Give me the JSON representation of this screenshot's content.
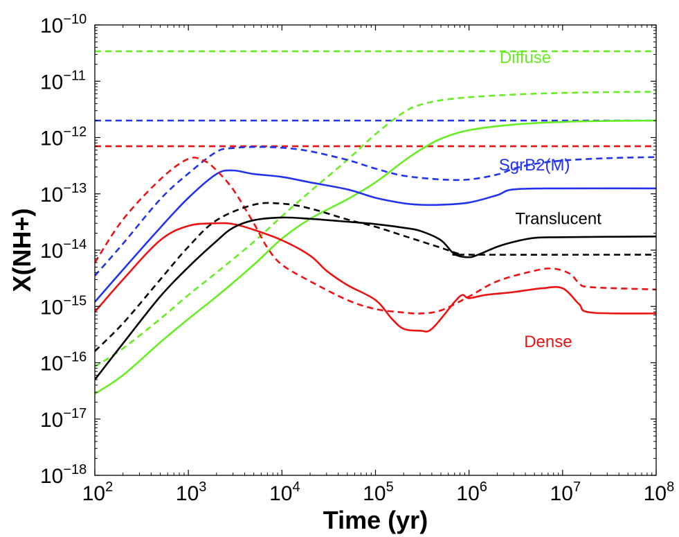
{
  "chart_data": {
    "type": "line",
    "xlabel": "Time (yr)",
    "ylabel": "X(NH+)",
    "x_scale": "log",
    "y_scale": "log",
    "xlim": [
      100,
      100000000
    ],
    "ylim": [
      1e-18,
      1e-10
    ],
    "x_ticks": [
      {
        "value": 100,
        "base": "10",
        "exp": "2"
      },
      {
        "value": 1000,
        "base": "10",
        "exp": "3"
      },
      {
        "value": 10000,
        "base": "10",
        "exp": "4"
      },
      {
        "value": 100000,
        "base": "10",
        "exp": "5"
      },
      {
        "value": 1000000,
        "base": "10",
        "exp": "6"
      },
      {
        "value": 10000000,
        "base": "10",
        "exp": "7"
      },
      {
        "value": 100000000,
        "base": "10",
        "exp": "8"
      }
    ],
    "y_ticks": [
      {
        "value": 1e-18,
        "base": "10",
        "exp": "−18"
      },
      {
        "value": 1e-17,
        "base": "10",
        "exp": "−17"
      },
      {
        "value": 1e-16,
        "base": "10",
        "exp": "−16"
      },
      {
        "value": 1e-15,
        "base": "10",
        "exp": "−15"
      },
      {
        "value": 1e-14,
        "base": "10",
        "exp": "−14"
      },
      {
        "value": 1e-13,
        "base": "10",
        "exp": "−13"
      },
      {
        "value": 1e-12,
        "base": "10",
        "exp": "−12"
      },
      {
        "value": 1e-11,
        "base": "10",
        "exp": "−11"
      },
      {
        "value": 1e-10,
        "base": "10",
        "exp": "−10"
      }
    ],
    "grid": false,
    "legend": "none",
    "annotations": [
      {
        "text": "Diffuse",
        "color": "#66ee22",
        "x": 4000000,
        "y": 2.1e-11
      },
      {
        "text": "SgrB2(M)",
        "color": "#2233ee",
        "x": 5000000,
        "y": 2.6e-13
      },
      {
        "text": "Translucent",
        "color": "#000000",
        "x": 9000000,
        "y": 2.9e-14
      },
      {
        "text": "Dense",
        "color": "#ee1111",
        "x": 7000000,
        "y": 1.9e-16
      }
    ],
    "series": [
      {
        "color": "#66ee22",
        "dash": true,
        "x": [
          100,
          100000000
        ],
        "y": [
          3.4e-11,
          3.4e-11
        ]
      },
      {
        "color": "#2233ee",
        "dash": true,
        "x": [
          100,
          100000000
        ],
        "y": [
          2e-12,
          2e-12
        ]
      },
      {
        "color": "#ee1111",
        "dash": true,
        "x": [
          100,
          100000000
        ],
        "y": [
          7e-13,
          7e-13
        ]
      },
      {
        "color": "#66ee22",
        "dash": true,
        "x": [
          100,
          200,
          500,
          1000,
          2000,
          5000,
          10000,
          20000,
          50000,
          100000,
          200000,
          300000,
          500000,
          1000000,
          3000000,
          10000000,
          30000000,
          100000000
        ],
        "y": [
          8.5e-17,
          1.8e-16,
          6e-16,
          1.6e-15,
          4e-15,
          1.4e-14,
          4e-14,
          1.1e-13,
          4e-13,
          1.15e-12,
          2.8e-12,
          3.8e-12,
          4.6e-12,
          5.2e-12,
          5.8e-12,
          6.2e-12,
          6.4e-12,
          6.5e-12
        ]
      },
      {
        "color": "#66ee22",
        "dash": false,
        "x": [
          100,
          200,
          500,
          1000,
          2000,
          5000,
          10000,
          20000,
          50000,
          100000,
          200000,
          300000,
          500000,
          1000000,
          3000000,
          10000000,
          30000000,
          100000000
        ],
        "y": [
          2.8e-17,
          6e-17,
          2.3e-16,
          6e-16,
          1.5e-15,
          5.5e-15,
          1.6e-14,
          3.6e-14,
          8e-14,
          1.6e-13,
          3.8e-13,
          6e-13,
          9.5e-13,
          1.35e-12,
          1.7e-12,
          1.9e-12,
          1.97e-12,
          2e-12
        ]
      },
      {
        "color": "#2233ee",
        "dash": true,
        "x": [
          100,
          200,
          500,
          1000,
          2000,
          3000,
          5000,
          10000,
          20000,
          50000,
          100000,
          200000,
          500000,
          1000000,
          2000000,
          3000000,
          5000000,
          10000000,
          30000000,
          100000000
        ],
        "y": [
          3.5e-15,
          1.3e-14,
          8e-14,
          2.3e-13,
          5.6e-13,
          6.5e-13,
          6.8e-13,
          6.6e-13,
          5.7e-13,
          4e-13,
          2.8e-13,
          2.1e-13,
          1.8e-13,
          1.8e-13,
          2.2e-13,
          2.8e-13,
          3.4e-13,
          3.9e-13,
          4.3e-13,
          4.5e-13
        ]
      },
      {
        "color": "#2233ee",
        "dash": false,
        "x": [
          100,
          200,
          500,
          1000,
          2000,
          3000,
          5000,
          10000,
          20000,
          50000,
          100000,
          200000,
          300000,
          500000,
          1000000,
          2000000,
          3000000,
          10000000,
          100000000
        ],
        "y": [
          1.2e-15,
          4.5e-15,
          2.5e-14,
          8.5e-14,
          2.25e-13,
          2.6e-13,
          2.25e-13,
          2e-13,
          1.6e-13,
          1.2e-13,
          8.5e-14,
          6.8e-14,
          6.4e-14,
          6.4e-14,
          7e-14,
          9.5e-14,
          1.2e-13,
          1.25e-13,
          1.25e-13
        ]
      },
      {
        "color": "#ee1111",
        "dash": true,
        "x": [
          100,
          200,
          500,
          1000,
          1500,
          2000,
          3000,
          5000,
          7000,
          10000,
          20000,
          50000,
          100000,
          200000,
          300000,
          500000,
          1000000,
          2000000,
          5000000,
          8000000,
          12000000,
          15000000,
          20000000,
          100000000
        ],
        "y": [
          6e-15,
          3.5e-14,
          1.8e-13,
          4.2e-13,
          3.8e-13,
          2.6e-13,
          1.2e-13,
          3e-14,
          1.1e-14,
          5.5e-15,
          2.8e-15,
          1.3e-15,
          9e-16,
          7.8e-16,
          7.5e-16,
          8.5e-16,
          1.5e-15,
          2.8e-15,
          4.3e-15,
          4.7e-15,
          3.8e-15,
          2.6e-15,
          2.2e-15,
          2e-15
        ]
      },
      {
        "color": "#ee1111",
        "dash": false,
        "x": [
          100,
          200,
          500,
          1000,
          2000,
          3000,
          5000,
          10000,
          20000,
          30000,
          50000,
          100000,
          150000,
          200000,
          300000,
          400000,
          700000,
          850000,
          1000000,
          1500000,
          3000000,
          6000000,
          10000000,
          15000000,
          20000000,
          100000000
        ],
        "y": [
          8e-16,
          3e-15,
          1.5e-14,
          2.7e-14,
          3e-14,
          2.9e-14,
          2.3e-14,
          1.5e-14,
          8e-15,
          4.3e-15,
          2.4e-15,
          1.3e-15,
          6e-16,
          4e-16,
          3.7e-16,
          4e-16,
          1.2e-15,
          1.6e-15,
          1.4e-15,
          1.6e-15,
          1.8e-15,
          2.1e-15,
          2.1e-15,
          1.1e-15,
          7.8e-16,
          7.5e-16
        ]
      },
      {
        "color": "#000000",
        "dash": true,
        "x": [
          100,
          200,
          500,
          1000,
          2000,
          5000,
          10000,
          20000,
          50000,
          100000,
          200000,
          500000,
          800000,
          1000000,
          100000000
        ],
        "y": [
          1.6e-16,
          5e-16,
          3e-15,
          1.15e-14,
          3.4e-14,
          6.4e-14,
          6.7e-14,
          5.5e-14,
          3.5e-14,
          2.6e-14,
          1.8e-14,
          1.1e-14,
          8.5e-15,
          8.3e-15,
          8.3e-15
        ]
      },
      {
        "color": "#000000",
        "dash": false,
        "x": [
          100,
          200,
          500,
          1000,
          2000,
          3000,
          5000,
          10000,
          20000,
          50000,
          100000,
          200000,
          300000,
          500000,
          700000,
          1000000,
          1300000,
          2000000,
          3000000,
          5000000,
          10000000,
          100000000
        ],
        "y": [
          5e-17,
          2.2e-16,
          1.5e-15,
          5e-15,
          1.45e-14,
          2.5e-14,
          3.4e-14,
          3.8e-14,
          3.6e-14,
          3.2e-14,
          2.9e-14,
          2.5e-14,
          2.2e-14,
          1.5e-14,
          8.5e-15,
          7.5e-15,
          8.5e-15,
          1.15e-14,
          1.4e-14,
          1.65e-14,
          1.7e-14,
          1.75e-14
        ]
      }
    ]
  }
}
